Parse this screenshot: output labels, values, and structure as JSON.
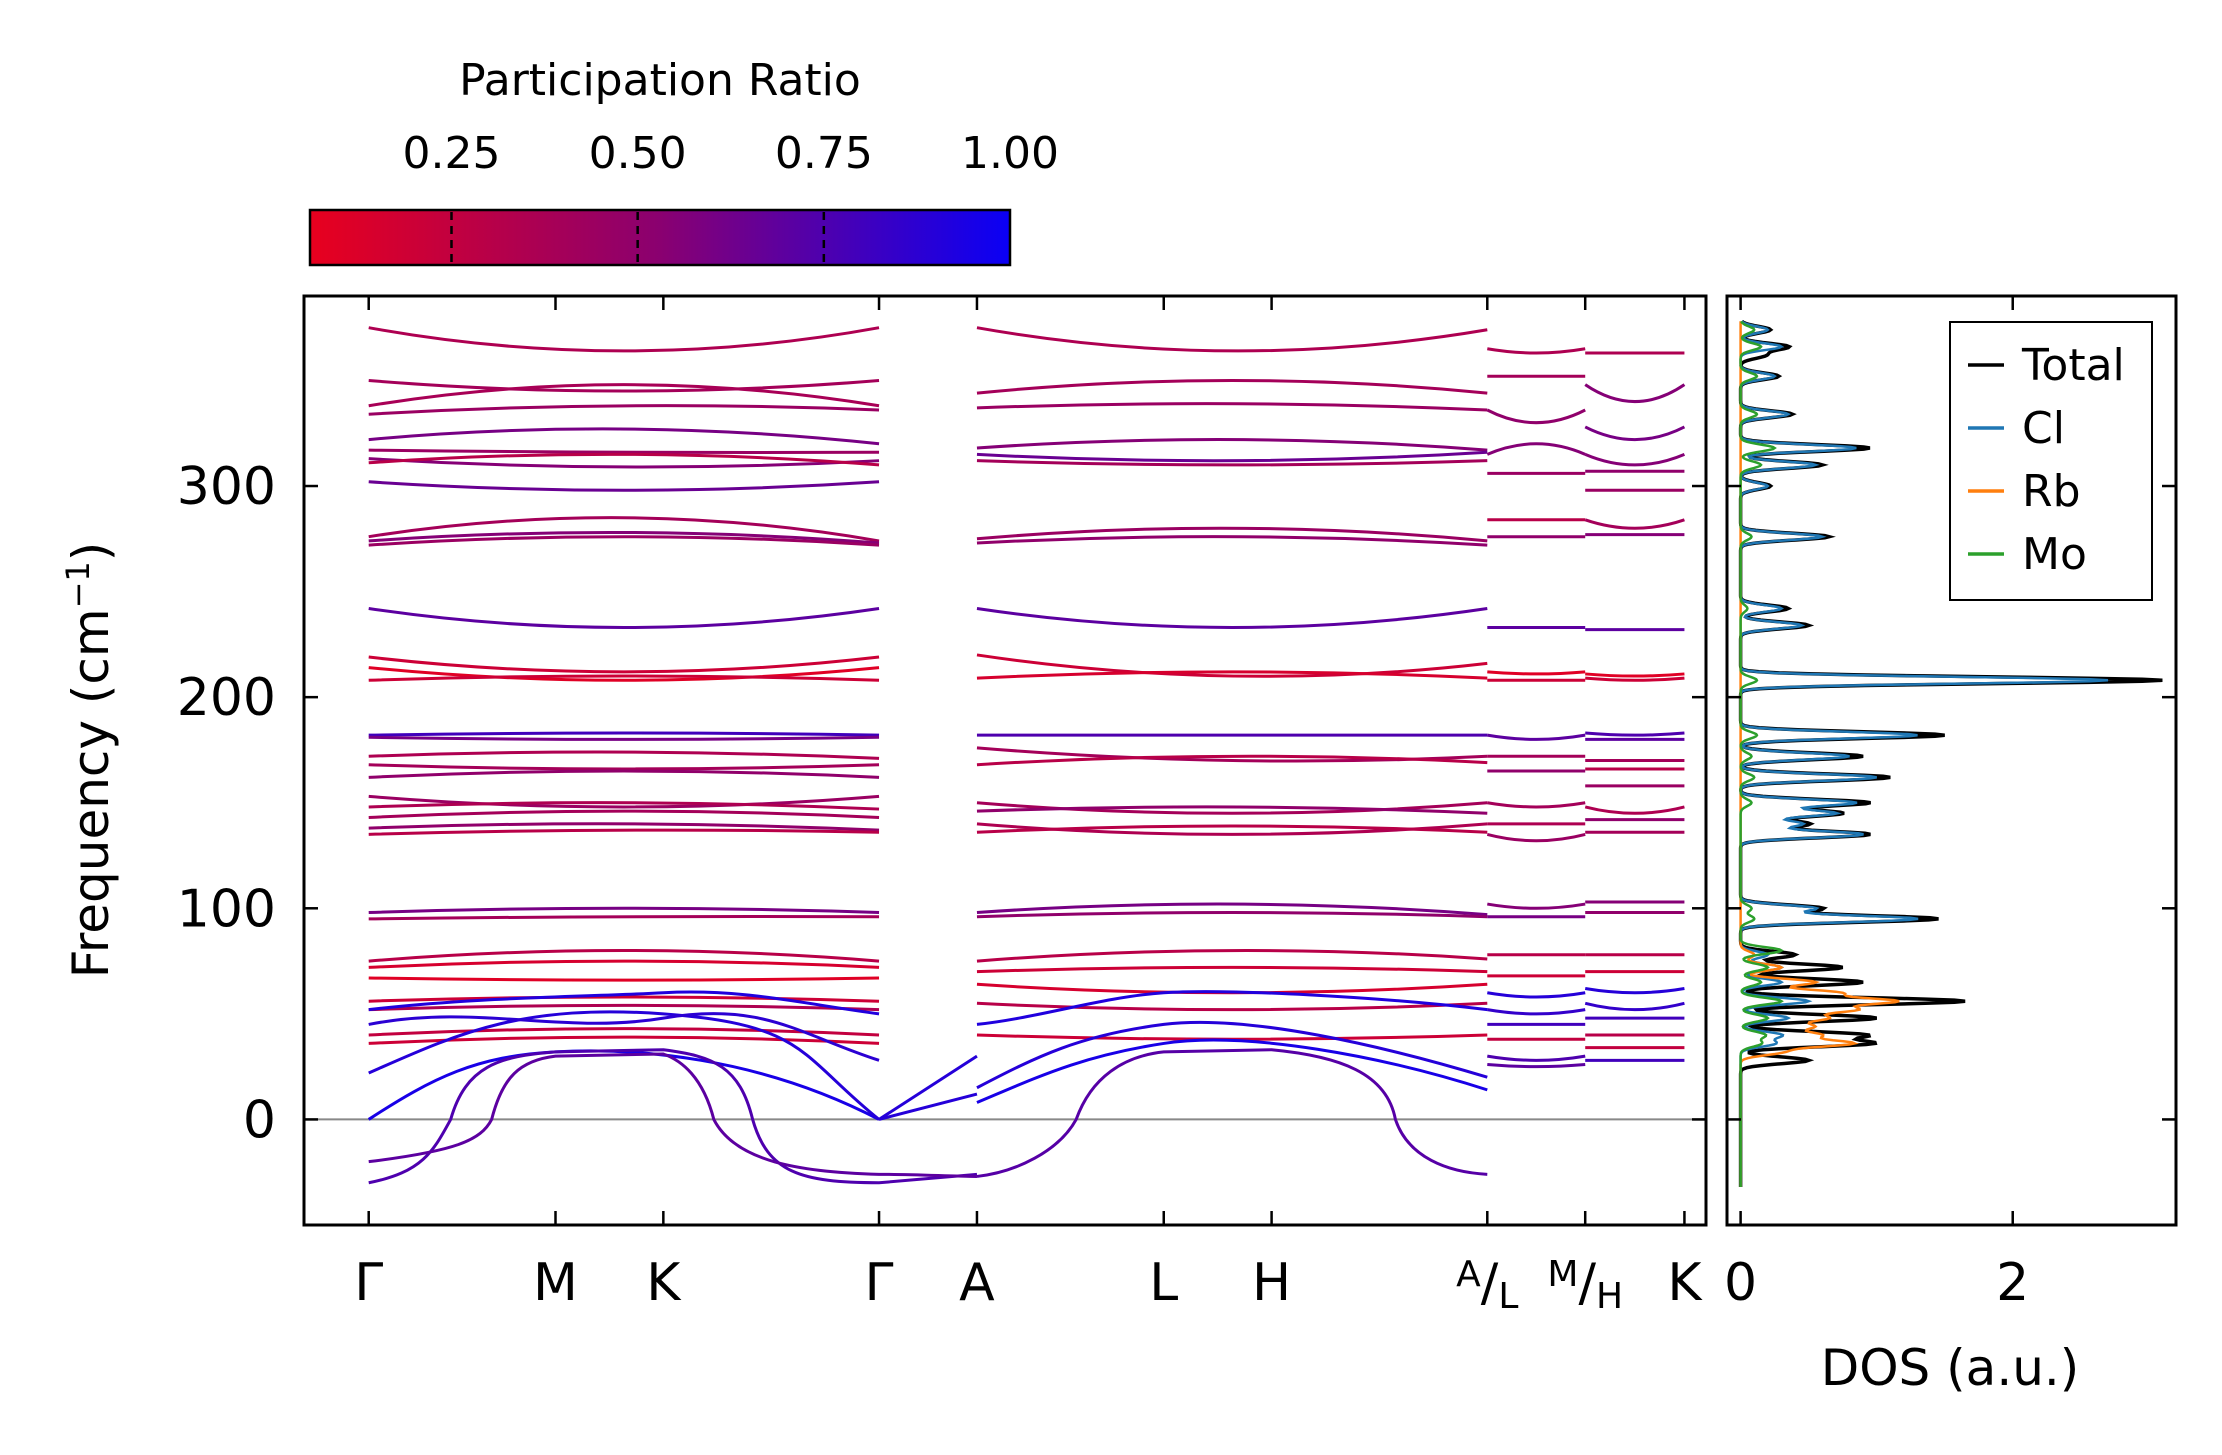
{
  "chart_data": [
    {
      "type": "line",
      "name": "phonon-band-structure",
      "ylabel": "Frequency (cm",
      "ylabel_sup": "−1",
      "ylabel_end": ")",
      "ylim": [
        -50,
        390
      ],
      "yticks": [
        0,
        100,
        200,
        300
      ],
      "xlim": [
        -0.3,
        6.2
      ],
      "path_points": [
        {
          "label": "Γ",
          "x": 0
        },
        {
          "label": "M",
          "x": 0.866
        },
        {
          "label": "K",
          "x": 1.366
        },
        {
          "label": "Γ",
          "x": 2.366
        },
        {
          "label": "A",
          "x": 2.82
        },
        {
          "label": "L",
          "x": 3.686
        },
        {
          "label": "H",
          "x": 4.186
        },
        {
          "label_top": "A",
          "label_bottom": "L",
          "x": 5.186
        },
        {
          "label_top": "M",
          "label_bottom": "H",
          "x": 5.64
        },
        {
          "label": "K",
          "x": 6.1
        }
      ],
      "segments": [
        [
          0,
          2.366
        ],
        [
          2.82,
          5.186
        ],
        [
          5.186,
          5.64
        ],
        [
          5.64,
          6.1
        ]
      ],
      "flat_bands": {
        "segment1": [
          [
            375,
            364,
            375,
            0.35
          ],
          [
            350,
            345,
            350,
            0.4
          ],
          [
            338,
            348,
            338,
            0.38
          ],
          [
            334,
            338,
            336,
            0.45
          ],
          [
            322,
            327,
            320,
            0.6
          ],
          [
            317,
            316,
            316,
            0.45
          ],
          [
            313,
            309,
            312,
            0.55
          ],
          [
            311,
            315,
            310,
            0.3
          ],
          [
            302,
            298,
            302,
            0.65
          ],
          [
            276,
            285,
            274,
            0.4
          ],
          [
            274,
            278,
            273,
            0.55
          ],
          [
            272,
            276,
            272,
            0.45
          ],
          [
            242,
            233,
            242,
            0.7
          ],
          [
            219,
            212,
            219,
            0.2
          ],
          [
            214,
            208,
            214,
            0.1
          ],
          [
            208,
            210,
            208,
            0.2
          ],
          [
            182,
            183,
            182,
            0.8
          ],
          [
            181,
            180,
            181,
            0.6
          ],
          [
            172,
            174,
            171,
            0.35
          ],
          [
            168,
            166,
            168,
            0.4
          ],
          [
            162,
            165,
            162,
            0.5
          ],
          [
            153,
            148,
            153,
            0.45
          ],
          [
            148,
            150,
            147,
            0.35
          ],
          [
            143,
            146,
            143,
            0.4
          ],
          [
            138,
            140,
            137,
            0.5
          ],
          [
            135,
            137,
            136,
            0.3
          ],
          [
            98,
            100,
            98,
            0.6
          ],
          [
            95,
            96,
            96,
            0.4
          ],
          [
            75,
            80,
            75,
            0.3
          ],
          [
            72,
            75,
            72,
            0.15
          ],
          [
            67,
            66,
            67,
            0.1
          ],
          [
            56,
            58,
            56,
            0.2
          ],
          [
            52,
            54,
            52,
            0.35
          ],
          [
            40,
            43,
            40,
            0.25
          ],
          [
            36,
            39,
            36,
            0.2
          ]
        ],
        "segment2": [
          [
            375,
            364,
            374,
            0.35
          ],
          [
            344,
            350,
            344,
            0.4
          ],
          [
            337,
            339,
            336,
            0.45
          ],
          [
            318,
            322,
            317,
            0.55
          ],
          [
            315,
            312,
            316,
            0.65
          ],
          [
            312,
            310,
            312,
            0.4
          ],
          [
            275,
            280,
            274,
            0.45
          ],
          [
            273,
            276,
            272,
            0.5
          ],
          [
            242,
            233,
            242,
            0.7
          ],
          [
            220,
            210,
            216,
            0.2
          ],
          [
            209,
            212,
            209,
            0.15
          ],
          [
            182,
            182,
            182,
            0.75
          ],
          [
            176,
            170,
            172,
            0.4
          ],
          [
            168,
            172,
            169,
            0.3
          ],
          [
            150,
            145,
            150,
            0.4
          ],
          [
            146,
            148,
            145,
            0.5
          ],
          [
            140,
            135,
            140,
            0.35
          ],
          [
            136,
            139,
            136,
            0.3
          ],
          [
            98,
            102,
            97,
            0.6
          ],
          [
            96,
            98,
            96,
            0.5
          ],
          [
            75,
            80,
            76,
            0.3
          ],
          [
            70,
            72,
            70,
            0.2
          ],
          [
            64,
            60,
            64,
            0.15
          ],
          [
            55,
            52,
            55,
            0.3
          ],
          [
            40,
            38,
            40,
            0.2
          ]
        ],
        "segment3": [
          [
            365,
            363,
            365,
            0.35
          ],
          [
            352,
            352,
            352,
            0.4
          ],
          [
            336,
            330,
            336,
            0.5
          ],
          [
            315,
            320,
            315,
            0.55
          ],
          [
            306,
            306,
            306,
            0.45
          ],
          [
            284,
            284,
            284,
            0.3
          ],
          [
            276,
            276,
            276,
            0.5
          ],
          [
            233,
            233,
            233,
            0.7
          ],
          [
            212,
            211,
            212,
            0.1
          ],
          [
            208,
            208,
            208,
            0.2
          ],
          [
            182,
            180,
            182,
            0.7
          ],
          [
            172,
            172,
            172,
            0.4
          ],
          [
            165,
            165,
            165,
            0.5
          ],
          [
            150,
            148,
            150,
            0.4
          ],
          [
            140,
            140,
            140,
            0.35
          ],
          [
            135,
            132,
            135,
            0.45
          ],
          [
            102,
            100,
            102,
            0.55
          ],
          [
            96,
            96,
            96,
            0.6
          ],
          [
            78,
            78,
            78,
            0.3
          ],
          [
            68,
            68,
            68,
            0.2
          ],
          [
            60,
            58,
            60,
            0.9
          ],
          [
            52,
            50,
            52,
            0.85
          ],
          [
            45,
            45,
            45,
            0.8
          ],
          [
            38,
            38,
            38,
            0.25
          ],
          [
            30,
            28,
            30,
            0.75
          ],
          [
            26,
            25,
            26,
            0.7
          ]
        ],
        "segment4": [
          [
            363,
            363,
            363,
            0.35
          ],
          [
            348,
            340,
            348,
            0.55
          ],
          [
            328,
            322,
            328,
            0.6
          ],
          [
            315,
            310,
            315,
            0.55
          ],
          [
            307,
            307,
            307,
            0.5
          ],
          [
            298,
            298,
            298,
            0.45
          ],
          [
            284,
            280,
            284,
            0.4
          ],
          [
            277,
            277,
            277,
            0.55
          ],
          [
            232,
            232,
            232,
            0.7
          ],
          [
            211,
            210,
            211,
            0.1
          ],
          [
            209,
            208,
            209,
            0.2
          ],
          [
            183,
            182,
            183,
            0.75
          ],
          [
            180,
            180,
            180,
            0.7
          ],
          [
            170,
            170,
            170,
            0.4
          ],
          [
            166,
            166,
            166,
            0.3
          ],
          [
            158,
            158,
            158,
            0.45
          ],
          [
            148,
            145,
            148,
            0.35
          ],
          [
            142,
            142,
            142,
            0.5
          ],
          [
            136,
            136,
            136,
            0.4
          ],
          [
            103,
            103,
            103,
            0.55
          ],
          [
            98,
            98,
            98,
            0.5
          ],
          [
            78,
            78,
            78,
            0.3
          ],
          [
            70,
            70,
            70,
            0.2
          ],
          [
            62,
            60,
            62,
            0.9
          ],
          [
            55,
            52,
            55,
            0.85
          ],
          [
            48,
            48,
            48,
            0.8
          ],
          [
            40,
            40,
            40,
            0.3
          ],
          [
            34,
            34,
            34,
            0.25
          ],
          [
            28,
            28,
            28,
            0.8
          ]
        ]
      },
      "zero_line": 0,
      "colorbar": {
        "label": "Participation Ratio",
        "ticks": [
          0.25,
          0.5,
          0.75,
          1.0
        ],
        "tick_labels": [
          "0.25",
          "0.50",
          "0.75",
          "1.00"
        ],
        "range": [
          0.06,
          1.0
        ],
        "colors": [
          "#e8001e",
          "#8a0070",
          "#0a00f5"
        ]
      }
    },
    {
      "type": "line",
      "name": "density-of-states",
      "xlabel": "DOS (a.u.)",
      "xlim": [
        -0.1,
        3.2
      ],
      "ylim": [
        -50,
        390
      ],
      "xticks": [
        0,
        2
      ],
      "series": [
        {
          "name": "Total",
          "color": "#000000"
        },
        {
          "name": "Cl",
          "color": "#1f77b4"
        },
        {
          "name": "Rb",
          "color": "#ff7f0e"
        },
        {
          "name": "Mo",
          "color": "#2ca02c"
        }
      ],
      "peaks": {
        "Total": [
          [
            374,
            0.22
          ],
          [
            366,
            0.35
          ],
          [
            362,
            0.18
          ],
          [
            352,
            0.28
          ],
          [
            334,
            0.38
          ],
          [
            318,
            0.95
          ],
          [
            310,
            0.6
          ],
          [
            300,
            0.22
          ],
          [
            276,
            0.65
          ],
          [
            242,
            0.35
          ],
          [
            234,
            0.5
          ],
          [
            208,
            3.1
          ],
          [
            182,
            1.5
          ],
          [
            172,
            0.9
          ],
          [
            162,
            1.1
          ],
          [
            150,
            0.95
          ],
          [
            145,
            0.75
          ],
          [
            140,
            0.5
          ],
          [
            135,
            0.95
          ],
          [
            100,
            0.6
          ],
          [
            95,
            1.45
          ],
          [
            78,
            0.4
          ],
          [
            72,
            0.75
          ],
          [
            65,
            0.9
          ],
          [
            56,
            1.65
          ],
          [
            48,
            1.0
          ],
          [
            40,
            0.9
          ],
          [
            36,
            0.95
          ],
          [
            28,
            0.5
          ]
        ],
        "Cl": [
          [
            374,
            0.2
          ],
          [
            366,
            0.3
          ],
          [
            352,
            0.25
          ],
          [
            334,
            0.35
          ],
          [
            318,
            0.85
          ],
          [
            310,
            0.55
          ],
          [
            300,
            0.2
          ],
          [
            276,
            0.6
          ],
          [
            242,
            0.3
          ],
          [
            234,
            0.45
          ],
          [
            208,
            2.7
          ],
          [
            182,
            1.3
          ],
          [
            172,
            0.8
          ],
          [
            162,
            1.0
          ],
          [
            150,
            0.85
          ],
          [
            145,
            0.7
          ],
          [
            140,
            0.45
          ],
          [
            135,
            0.9
          ],
          [
            100,
            0.55
          ],
          [
            95,
            1.3
          ],
          [
            78,
            0.2
          ],
          [
            72,
            0.3
          ],
          [
            65,
            0.3
          ],
          [
            56,
            0.5
          ],
          [
            48,
            0.35
          ],
          [
            40,
            0.3
          ],
          [
            36,
            0.25
          ]
        ],
        "Rb": [
          [
            78,
            0.1
          ],
          [
            72,
            0.3
          ],
          [
            65,
            0.55
          ],
          [
            60,
            0.7
          ],
          [
            56,
            1.1
          ],
          [
            52,
            0.8
          ],
          [
            48,
            0.6
          ],
          [
            44,
            0.5
          ],
          [
            40,
            0.55
          ],
          [
            36,
            0.8
          ],
          [
            32,
            0.3
          ]
        ],
        "Mo": [
          [
            374,
            0.1
          ],
          [
            366,
            0.15
          ],
          [
            352,
            0.12
          ],
          [
            334,
            0.12
          ],
          [
            318,
            0.25
          ],
          [
            310,
            0.15
          ],
          [
            276,
            0.08
          ],
          [
            242,
            0.05
          ],
          [
            208,
            0.12
          ],
          [
            182,
            0.12
          ],
          [
            172,
            0.08
          ],
          [
            162,
            0.1
          ],
          [
            150,
            0.08
          ],
          [
            100,
            0.08
          ],
          [
            95,
            0.1
          ],
          [
            80,
            0.3
          ],
          [
            72,
            0.2
          ],
          [
            65,
            0.15
          ],
          [
            56,
            0.3
          ],
          [
            48,
            0.2
          ],
          [
            40,
            0.18
          ],
          [
            36,
            0.15
          ]
        ]
      }
    }
  ]
}
